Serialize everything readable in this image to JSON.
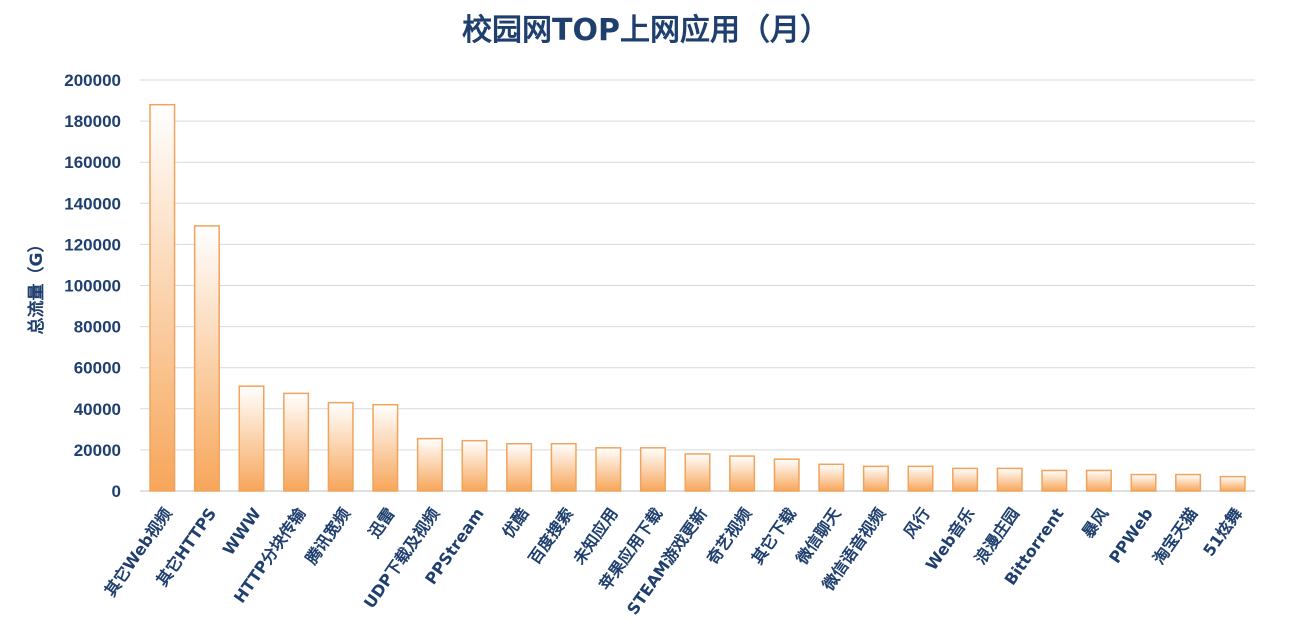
{
  "chart_data": {
    "type": "bar",
    "title": "校园网TOP上网应用（月）",
    "xlabel": "",
    "ylabel": "总流量（G）",
    "ylim": [
      0,
      200000
    ],
    "yticks": [
      0,
      20000,
      40000,
      60000,
      80000,
      100000,
      120000,
      140000,
      160000,
      180000,
      200000
    ],
    "ytick_labels": [
      "0",
      "20000",
      "40000",
      "60000",
      "80000",
      "100000",
      "120000",
      "140000",
      "160000",
      "180000",
      "200000"
    ],
    "grid": true,
    "legend": "none",
    "bar_color_top": "#ffffff",
    "bar_color_bottom": "#f7a65a",
    "bar_edge_color": "#f0a35c",
    "text_color": "#1f3f6e",
    "categories": [
      "其它Web视频",
      "其它HTTPS",
      "WWW",
      "HTTP分块传输",
      "腾讯宽频",
      "迅雷",
      "UDP下载及视频",
      "PPStream",
      "优酷",
      "百度搜索",
      "未知应用",
      "苹果应用下载",
      "STEAM游戏更新",
      "奇艺视频",
      "其它下载",
      "微信聊天",
      "微信语音视频",
      "风行",
      "Web音乐",
      "浪漫庄园",
      "Bittorrent",
      "暴风",
      "PPWeb",
      "淘宝天猫",
      "51炫舞"
    ],
    "values": [
      188000,
      129000,
      51000,
      47500,
      43000,
      42000,
      25500,
      24500,
      23000,
      23000,
      21000,
      21000,
      18000,
      17000,
      15500,
      13000,
      12000,
      12000,
      11000,
      11000,
      10000,
      10000,
      8000,
      8000,
      7000
    ]
  }
}
